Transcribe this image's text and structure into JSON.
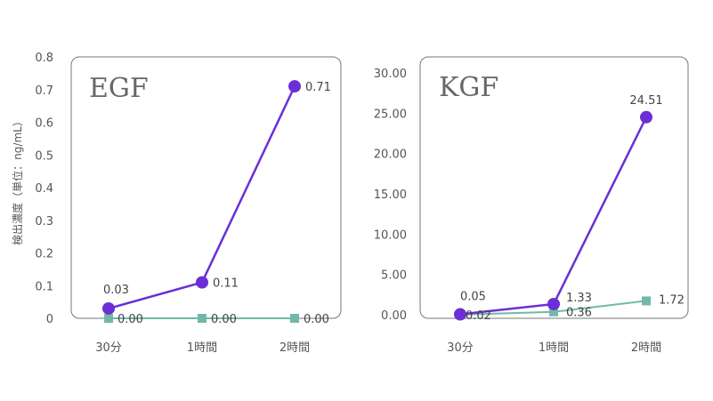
{
  "chart_data": [
    {
      "type": "line",
      "title": "EGF",
      "ylabel": "検出濃度（単位：ng/mL）",
      "categories": [
        "30分",
        "1時間",
        "2時間"
      ],
      "ylim": [
        0,
        0.8
      ],
      "yticks": [
        "0",
        "0.1",
        "0.2",
        "0.3",
        "0.4",
        "0.5",
        "0.6",
        "0.7",
        "0.8"
      ],
      "series": [
        {
          "marker": "circle",
          "color": "#6a2fd6",
          "values": [
            0.03,
            0.11,
            0.71
          ],
          "labels": [
            "0.03",
            "0.11",
            "0.71"
          ]
        },
        {
          "marker": "square",
          "color": "#72b8a8",
          "values": [
            0.0,
            0.0,
            0.0
          ],
          "labels": [
            "0.00",
            "0.00",
            "0.00"
          ]
        }
      ]
    },
    {
      "type": "line",
      "title": "KGF",
      "ylabel": "",
      "categories": [
        "30分",
        "1時間",
        "2時間"
      ],
      "ylim": [
        0,
        30
      ],
      "yticks": [
        "0.00",
        "5.00",
        "10.00",
        "15.00",
        "20.00",
        "25.00",
        "30.00"
      ],
      "series": [
        {
          "marker": "circle",
          "color": "#6a2fd6",
          "values": [
            0.05,
            1.33,
            24.51
          ],
          "labels": [
            "0.05",
            "1.33",
            "24.51"
          ]
        },
        {
          "marker": "square",
          "color": "#72b8a8",
          "values": [
            0.02,
            0.36,
            1.72
          ],
          "labels": [
            "0.02",
            "0.36",
            "1.72"
          ]
        }
      ]
    }
  ]
}
